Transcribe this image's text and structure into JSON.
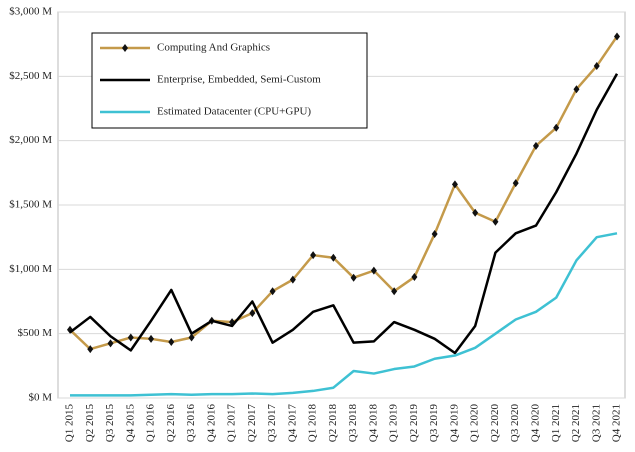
{
  "chart_data": {
    "type": "line",
    "categories": [
      "Q1 2015",
      "Q2 2015",
      "Q3 2015",
      "Q4 2015",
      "Q1 2016",
      "Q2 2016",
      "Q3 2016",
      "Q4 2016",
      "Q1 2017",
      "Q2 2017",
      "Q3 2017",
      "Q4 2017",
      "Q1 2018",
      "Q2 2018",
      "Q3 2018",
      "Q4 2018",
      "Q1 2019",
      "Q2 2019",
      "Q3 2019",
      "Q4 2019",
      "Q1 2020",
      "Q2 2020",
      "Q3 2020",
      "Q4 2020",
      "Q1 2021",
      "Q2 2021",
      "Q3 2021",
      "Q4 2021"
    ],
    "series": [
      {
        "name": "Computing And Graphics",
        "color": "#c49a4a",
        "marker": "diamond",
        "values": [
          530,
          380,
          425,
          470,
          460,
          435,
          470,
          600,
          590,
          660,
          830,
          920,
          1110,
          1090,
          935,
          990,
          830,
          940,
          1275,
          1660,
          1440,
          1370,
          1670,
          1960,
          2100,
          2400,
          2580,
          2810
        ]
      },
      {
        "name": "Enterprise, Embedded, Semi-Custom",
        "color": "#000000",
        "values": [
          510,
          630,
          480,
          370,
          600,
          840,
          500,
          600,
          560,
          750,
          430,
          530,
          670,
          720,
          430,
          440,
          590,
          530,
          460,
          350,
          560,
          1130,
          1280,
          1340,
          1600,
          1900,
          2240,
          2520
        ]
      },
      {
        "name": "Estimated Datacenter (CPU+GPU)",
        "color": "#3ec1d3",
        "values": [
          20,
          20,
          20,
          20,
          25,
          30,
          25,
          30,
          30,
          35,
          30,
          40,
          55,
          80,
          210,
          190,
          225,
          245,
          305,
          330,
          390,
          500,
          610,
          670,
          780,
          1070,
          1250,
          1280
        ]
      }
    ],
    "ylim": [
      0,
      3000
    ],
    "yticks": [
      {
        "value": 0,
        "label": "$0 M"
      },
      {
        "value": 500,
        "label": "$500 M"
      },
      {
        "value": 1000,
        "label": "$1,000 M"
      },
      {
        "value": 1500,
        "label": "$1,500 M"
      },
      {
        "value": 2000,
        "label": "$2,000 M"
      },
      {
        "value": 2500,
        "label": "$2,500 M"
      },
      {
        "value": 3000,
        "label": "$3,000 M"
      }
    ],
    "grid": true,
    "legend": "upper left"
  }
}
